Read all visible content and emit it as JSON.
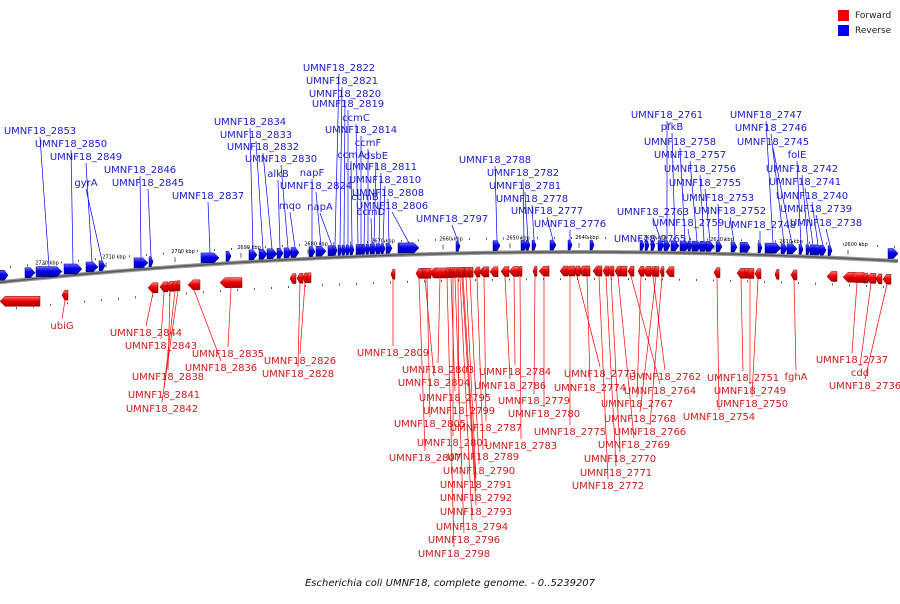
{
  "legend": {
    "forward_label": "Forward",
    "reverse_label": "Reverse",
    "forward_color": "#ff0000",
    "reverse_color": "#0000ff"
  },
  "caption": "Escherichia coli UMNF18, complete genome. - 0..5239207",
  "ticks": [
    "2720 kbp",
    "2710 kbp",
    "2700 kbp",
    "2690 kbp",
    "2680 kbp",
    "2670 kbp",
    "2660 kbp",
    "2650 kbp",
    "2640 kbp",
    "2630 kbp",
    "2620 kbp",
    "2610 kbp",
    "2600 kbp"
  ],
  "reverse_genes": [
    "UMNF18_2853",
    "UMNF18_2850",
    "UMNF18_2849",
    "gyrA",
    "UMNF18_2846",
    "UMNF18_2845",
    "UMNF18_2837",
    "UMNF18_2834",
    "UMNF18_2833",
    "UMNF18_2832",
    "alkB",
    "UMNF18_2830",
    "mqo",
    "napF",
    "UMNF18_2824",
    "napA",
    "UMNF18_2822",
    "UMNF18_2821",
    "UMNF18_2820",
    "UMNF18_2819",
    "ccmA",
    "ccmC",
    "UMNF18_2814",
    "ccmB",
    "ccmF",
    "ccmD",
    "dsbE",
    "UMNF18_2811",
    "UMNF18_2810",
    "UMNF18_2808",
    "UMNF18_2806",
    "UMNF18_2797",
    "UMNF18_2788",
    "UMNF18_2782",
    "UMNF18_2781",
    "UMNF18_2778",
    "UMNF18_2777",
    "UMNF18_2776",
    "UMNF18_2765",
    "UMNF18_2763",
    "UMNF18_2761",
    "pfkB",
    "UMNF18_2758",
    "UMNF18_2759",
    "UMNF18_2757",
    "UMNF18_2756",
    "UMNF18_2755",
    "UMNF18_2753",
    "UMNF18_2752",
    "UMNF18_2748",
    "UMNF18_2747",
    "UMNF18_2746",
    "UMNF18_2745",
    "folE",
    "UMNF18_2742",
    "UMNF18_2741",
    "UMNF18_2740",
    "UMNF18_2739",
    "UMNF18_2738"
  ],
  "forward_genes": [
    "ubiG",
    "UMNF18_2844",
    "UMNF18_2843",
    "UMNF18_2838",
    "UMNF18_2841",
    "UMNF18_2842",
    "UMNF18_2835",
    "UMNF18_2836",
    "UMNF18_2826",
    "UMNF18_2828",
    "UMNF18_2809",
    "UMNF18_2803",
    "UMNF18_2804",
    "UMNF18_2795",
    "UMNF18_2799",
    "UMNF18_2805",
    "UMNF18_2801",
    "UMNF18_2807",
    "UMNF18_2784",
    "UMNF18_2786",
    "UMNF18_2779",
    "UMNF18_2780",
    "UMNF18_2787",
    "UMNF18_2783",
    "UMNF18_2789",
    "UMNF18_2790",
    "UMNF18_2791",
    "UMNF18_2792",
    "UMNF18_2793",
    "UMNF18_2794",
    "UMNF18_2796",
    "UMNF18_2798",
    "UMNF18_2773",
    "UMNF18_2774",
    "UMNF18_2775",
    "UMNF18_2771",
    "UMNF18_2772",
    "UMNF18_2770",
    "UMNF18_2769",
    "UMNF18_2762",
    "UMNF18_2764",
    "UMNF18_2767",
    "UMNF18_2768",
    "UMNF18_2766",
    "UMNF18_2751",
    "UMNF18_2749",
    "UMNF18_2750",
    "UMNF18_2754",
    "fghA",
    "UMNF18_2737",
    "cdd",
    "UMNF18_2736"
  ]
}
